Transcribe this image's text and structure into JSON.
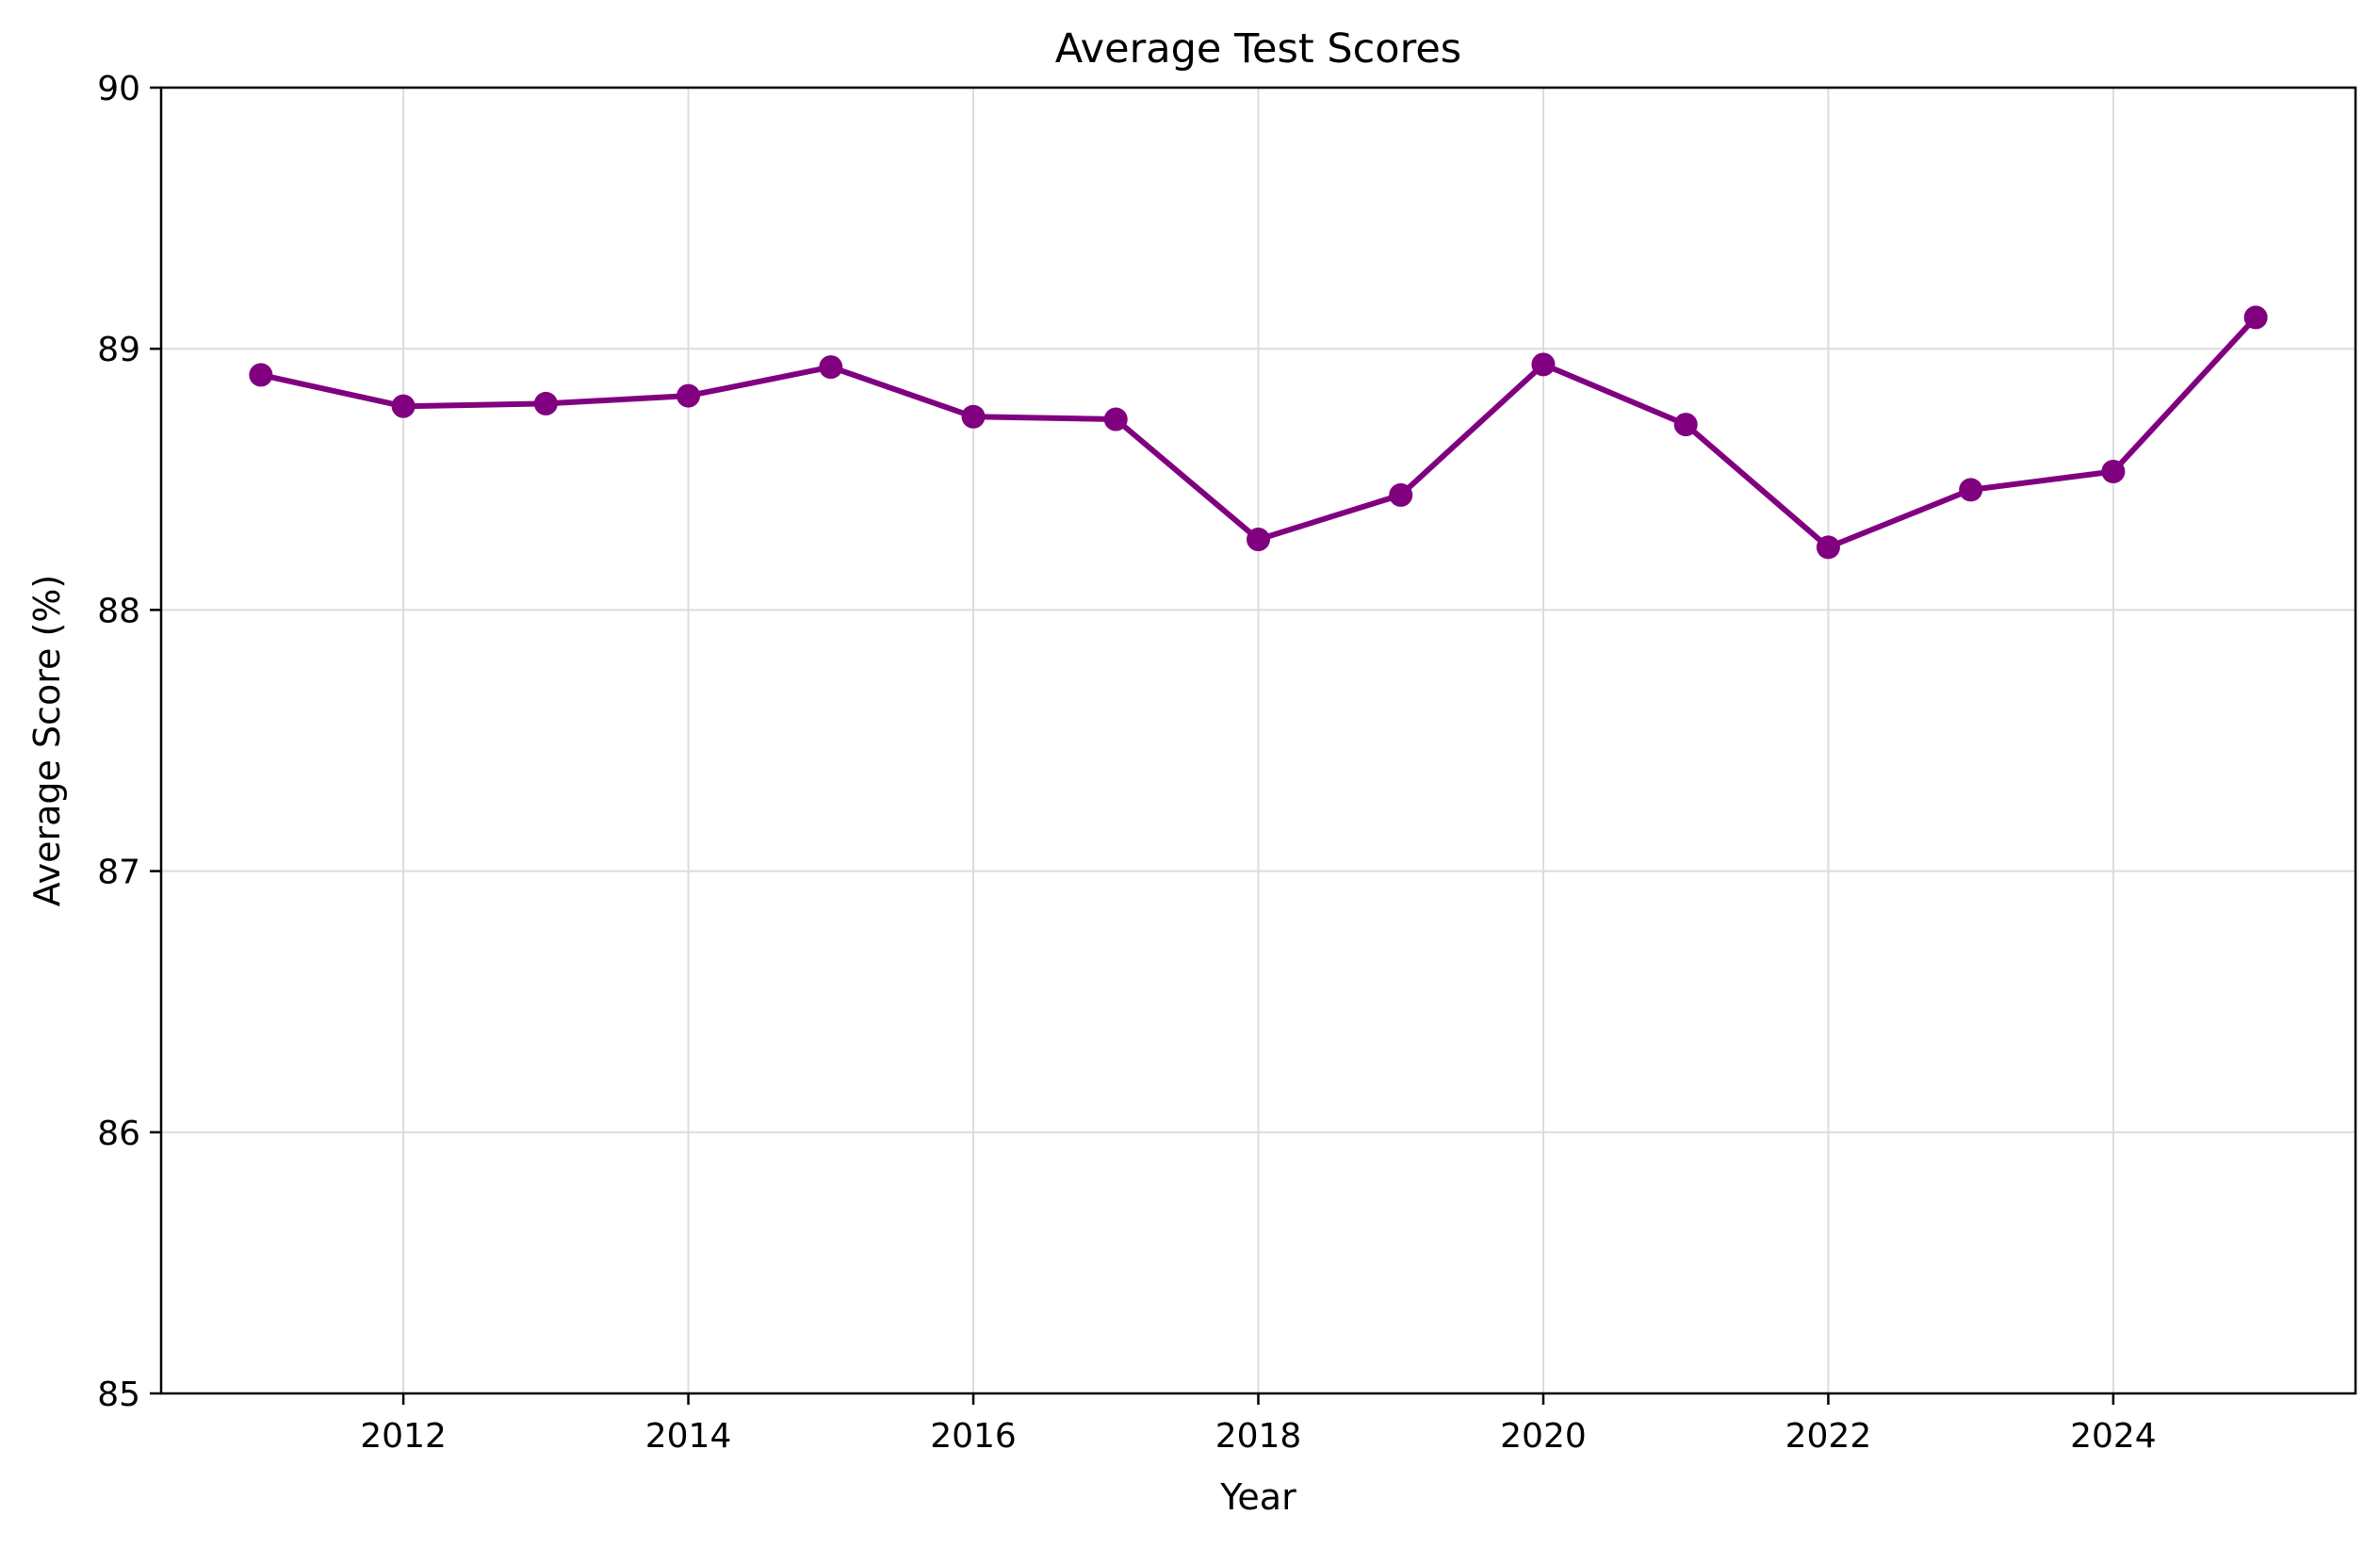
{
  "chart_data": {
    "type": "line",
    "title": "Average Test Scores",
    "xlabel": "Year",
    "ylabel": "Average Score (%)",
    "xlim": [
      2010.3,
      2025.7
    ],
    "ylim": [
      85,
      90
    ],
    "xticks": [
      2012,
      2014,
      2016,
      2018,
      2020,
      2022,
      2024
    ],
    "yticks": [
      85,
      86,
      87,
      88,
      89,
      90
    ],
    "grid": true,
    "legend": "none",
    "series": [
      {
        "color": "#800080",
        "marker": "circle",
        "x": [
          2011,
          2012,
          2013,
          2014,
          2015,
          2016,
          2017,
          2018,
          2019,
          2020,
          2021,
          2022,
          2023,
          2024,
          2025
        ],
        "y": [
          88.9,
          88.78,
          88.79,
          88.82,
          88.93,
          88.74,
          88.73,
          88.27,
          88.44,
          88.94,
          88.71,
          88.24,
          88.46,
          88.53,
          89.12
        ]
      }
    ]
  }
}
